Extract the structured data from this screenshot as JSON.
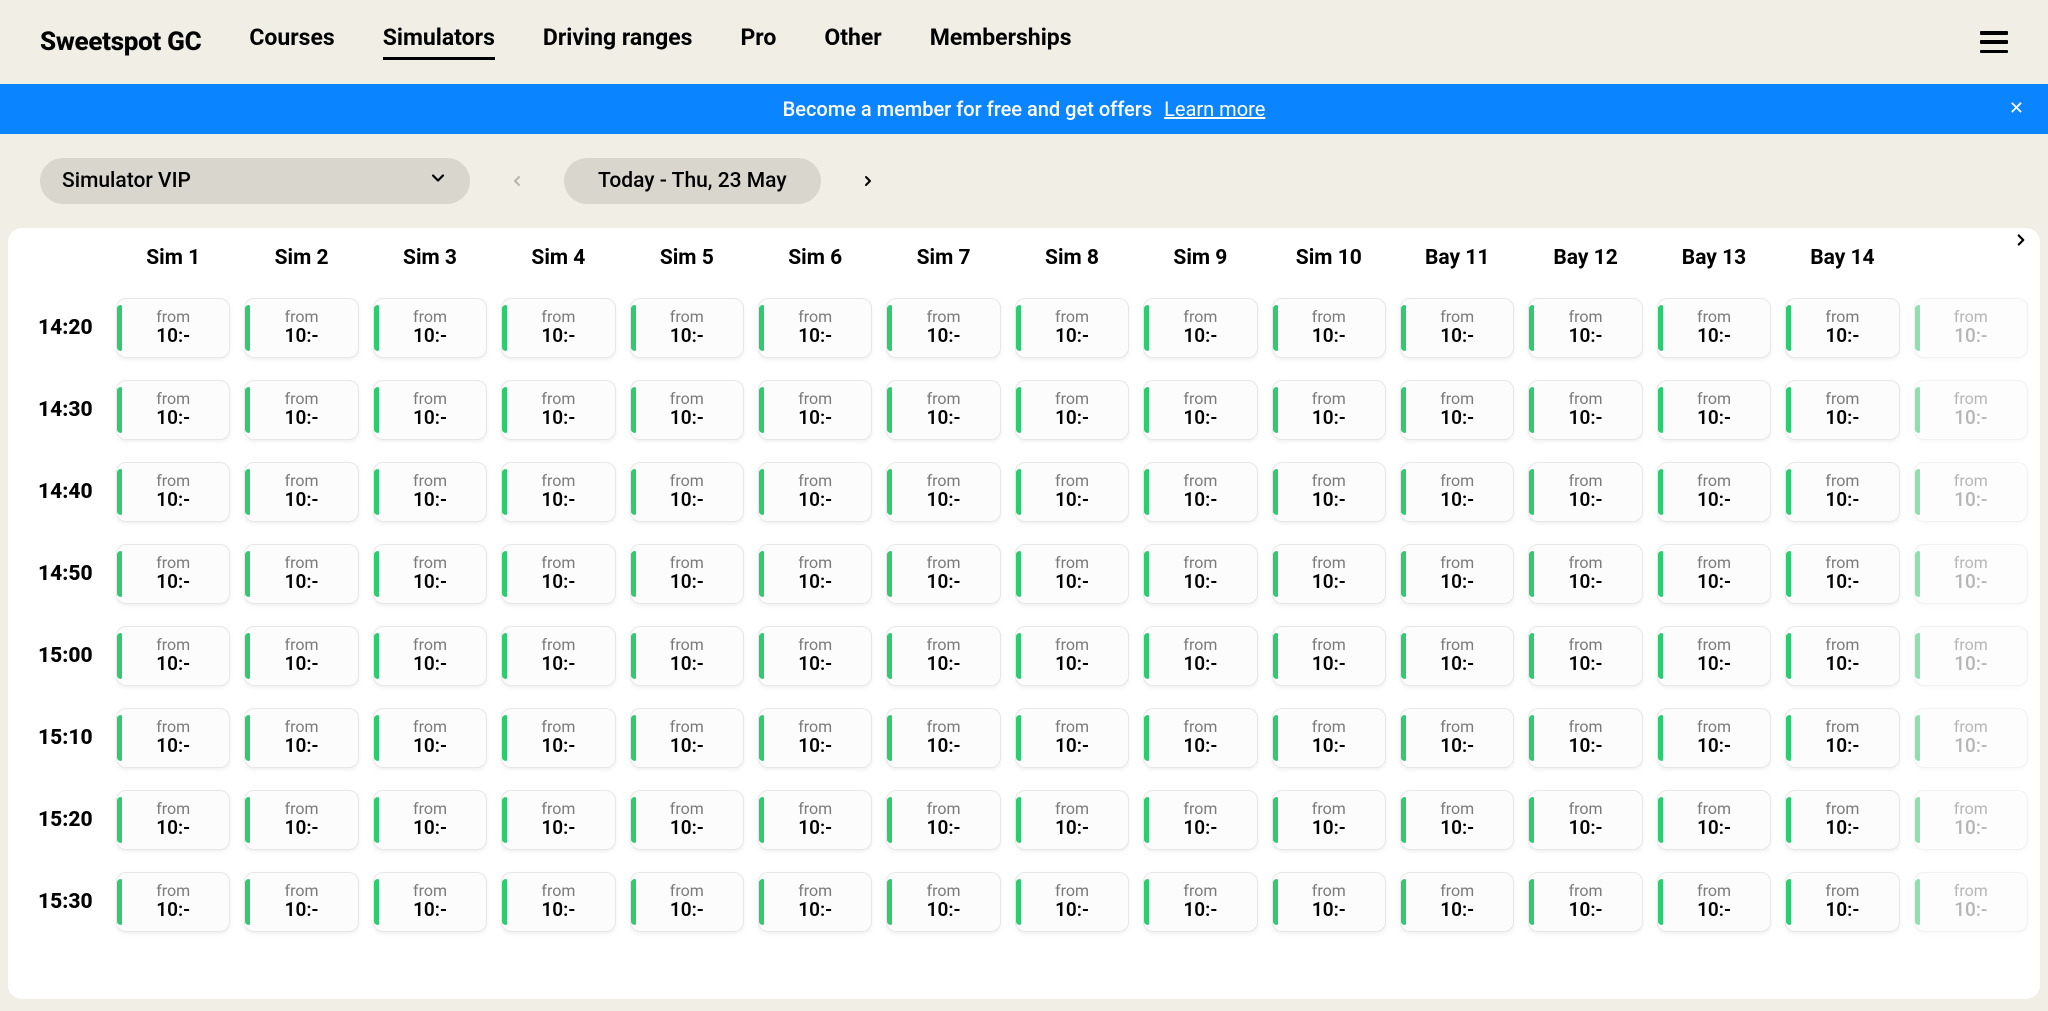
{
  "brand": "Sweetspot GC",
  "nav": {
    "items": [
      "Courses",
      "Simulators",
      "Driving ranges",
      "Pro",
      "Other",
      "Memberships"
    ],
    "activeIndex": 1
  },
  "banner": {
    "text": "Become a member for free and get offers",
    "link": "Learn more"
  },
  "controls": {
    "selector": "Simulator VIP",
    "date": "Today - Thu, 23 May"
  },
  "schedule": {
    "columns": [
      "Sim 1",
      "Sim 2",
      "Sim 3",
      "Sim 4",
      "Sim 5",
      "Sim 6",
      "Sim 7",
      "Sim 8",
      "Sim 9",
      "Sim 10",
      "Bay 11",
      "Bay 12",
      "Bay 13",
      "Bay 14",
      ""
    ],
    "fadedLastColumn": true,
    "times": [
      "14:20",
      "14:30",
      "14:40",
      "14:50",
      "15:00",
      "15:10",
      "15:20",
      "15:30"
    ],
    "slot": {
      "from": "from",
      "price": "10:-"
    },
    "colors": {
      "accent": "#2ecc71",
      "bannerBg": "#0A84FF"
    }
  }
}
